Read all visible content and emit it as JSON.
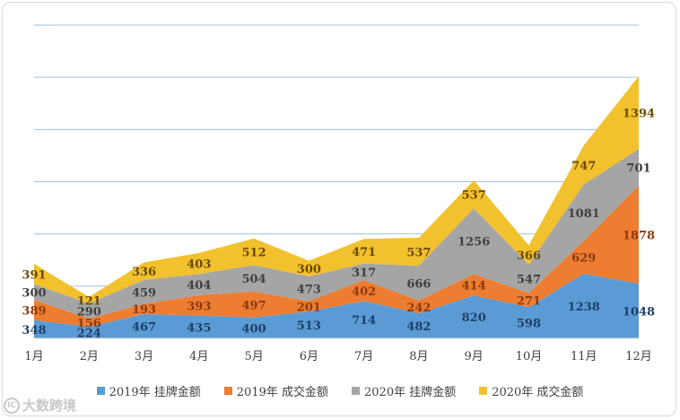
{
  "chart_data": {
    "type": "area",
    "stacked": true,
    "categories": [
      "1月",
      "2月",
      "3月",
      "4月",
      "5月",
      "6月",
      "7月",
      "8月",
      "9月",
      "10月",
      "11月",
      "12月"
    ],
    "series": [
      {
        "name": "2019年 挂牌金额",
        "color": "#5b9bd5",
        "label_color": "#1f3f66",
        "values": [
          348,
          224,
          467,
          435,
          400,
          513,
          714,
          482,
          820,
          598,
          1238,
          1048
        ]
      },
      {
        "name": "2019年 成交金额",
        "color": "#ed7d31",
        "label_color": "#8a3a10",
        "values": [
          389,
          156,
          193,
          393,
          497,
          201,
          402,
          242,
          414,
          271,
          629,
          1878
        ]
      },
      {
        "name": "2020年 挂牌金额",
        "color": "#a5a5a5",
        "label_color": "#404040",
        "values": [
          300,
          290,
          459,
          404,
          504,
          473,
          317,
          666,
          1256,
          547,
          1081,
          701
        ]
      },
      {
        "name": "2020年 成交金额",
        "color": "#f2c12e",
        "label_color": "#6b4a00",
        "values": [
          391,
          121,
          336,
          403,
          512,
          300,
          471,
          537,
          537,
          366,
          747,
          1394
        ]
      }
    ],
    "ylim": [
      0,
      6000
    ],
    "grid": true,
    "legend": "bottom"
  },
  "watermark": {
    "text": "大数跨境",
    "logo": "IC"
  }
}
